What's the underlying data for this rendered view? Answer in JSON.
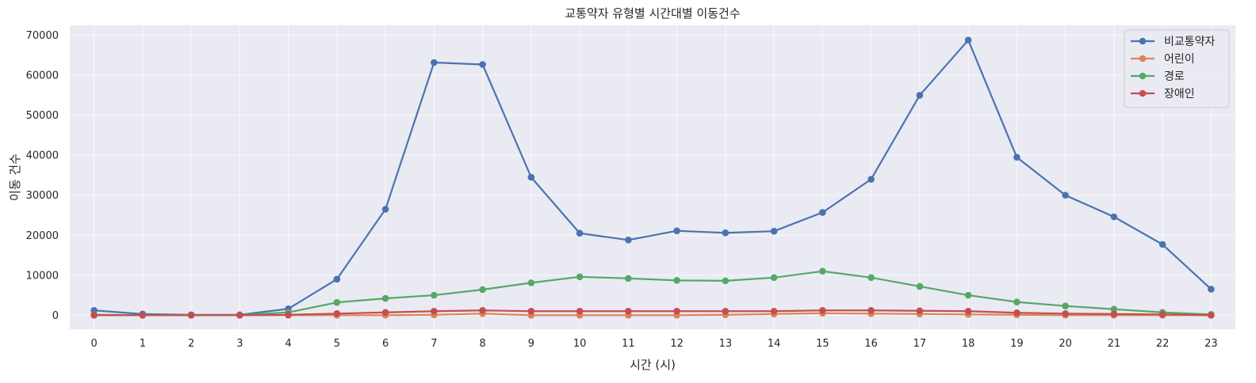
{
  "chart_data": {
    "type": "line",
    "title": "교통약자 유형별 시간대별 이동건수",
    "xlabel": "시간 (시)",
    "ylabel": "이동 건수",
    "x": [
      0,
      1,
      2,
      3,
      4,
      5,
      6,
      7,
      8,
      9,
      10,
      11,
      12,
      13,
      14,
      15,
      16,
      17,
      18,
      19,
      20,
      21,
      22,
      23
    ],
    "xlim": [
      -0.5,
      23.5
    ],
    "ylim": [
      -3500,
      72500
    ],
    "yticks": [
      0,
      10000,
      20000,
      30000,
      40000,
      50000,
      60000,
      70000
    ],
    "grid": true,
    "legend_position": "top-right",
    "series": [
      {
        "name": "비교통약자",
        "color": "#4c72b0",
        "values": [
          1200,
          300,
          100,
          100,
          1600,
          9000,
          26500,
          63200,
          62700,
          34500,
          20500,
          18800,
          21100,
          20600,
          21000,
          25700,
          34000,
          55000,
          68800,
          39500,
          30000,
          24600,
          17700,
          6500
        ]
      },
      {
        "name": "어린이",
        "color": "#dd8452",
        "values": [
          0,
          0,
          0,
          0,
          0,
          0,
          0,
          100,
          400,
          0,
          0,
          0,
          0,
          100,
          300,
          500,
          400,
          300,
          200,
          100,
          0,
          0,
          0,
          0
        ]
      },
      {
        "name": "경로",
        "color": "#55a868",
        "values": [
          100,
          50,
          50,
          50,
          700,
          3200,
          4200,
          5000,
          6400,
          8100,
          9600,
          9200,
          8700,
          8600,
          9400,
          11000,
          9400,
          7200,
          5000,
          3300,
          2300,
          1500,
          700,
          200
        ]
      },
      {
        "name": "장애인",
        "color": "#c44e52",
        "values": [
          0,
          0,
          0,
          0,
          100,
          400,
          700,
          1000,
          1200,
          1000,
          1000,
          1000,
          1000,
          1000,
          1000,
          1200,
          1200,
          1100,
          1000,
          600,
          400,
          300,
          200,
          0
        ]
      }
    ]
  }
}
